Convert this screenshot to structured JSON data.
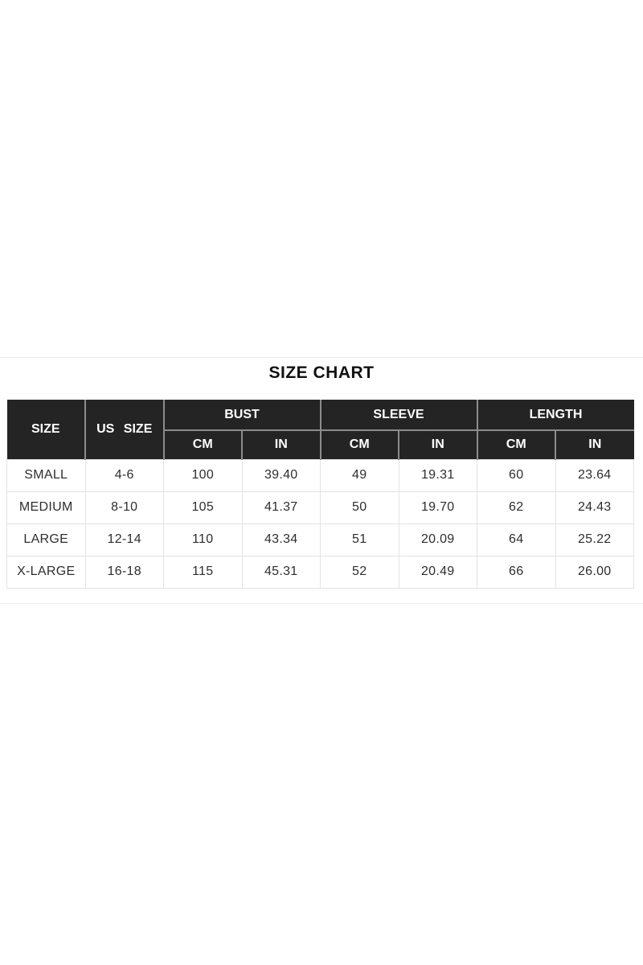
{
  "title": "SIZE CHART",
  "header": {
    "size": "SIZE",
    "us_size": "US SIZE",
    "groups": [
      "BUST",
      "SLEEVE",
      "LENGTH"
    ],
    "units": [
      "CM",
      "IN",
      "CM",
      "IN",
      "CM",
      "IN"
    ]
  },
  "chart_data": {
    "type": "table",
    "title": "SIZE CHART",
    "column_groups": [
      "BUST",
      "SLEEVE",
      "LENGTH"
    ],
    "columns": [
      "SIZE",
      "US SIZE",
      "BUST CM",
      "BUST IN",
      "SLEEVE CM",
      "SLEEVE IN",
      "LENGTH CM",
      "LENGTH IN"
    ],
    "rows": [
      [
        "SMALL",
        "4-6",
        "100",
        "39.40",
        "49",
        "19.31",
        "60",
        "23.64"
      ],
      [
        "MEDIUM",
        "8-10",
        "105",
        "41.37",
        "50",
        "19.70",
        "62",
        "24.43"
      ],
      [
        "LARGE",
        "12-14",
        "110",
        "43.34",
        "51",
        "20.09",
        "64",
        "25.22"
      ],
      [
        "X-LARGE",
        "16-18",
        "115",
        "45.31",
        "52",
        "20.49",
        "66",
        "26.00"
      ]
    ]
  },
  "colors": {
    "header_bg": "#242424",
    "header_text": "#ffffff",
    "header_border": "#8c8c8c",
    "body_border": "#e3e3e3",
    "body_text": "#2e2e2e",
    "title_text": "#111111",
    "divider": "#ececec"
  }
}
